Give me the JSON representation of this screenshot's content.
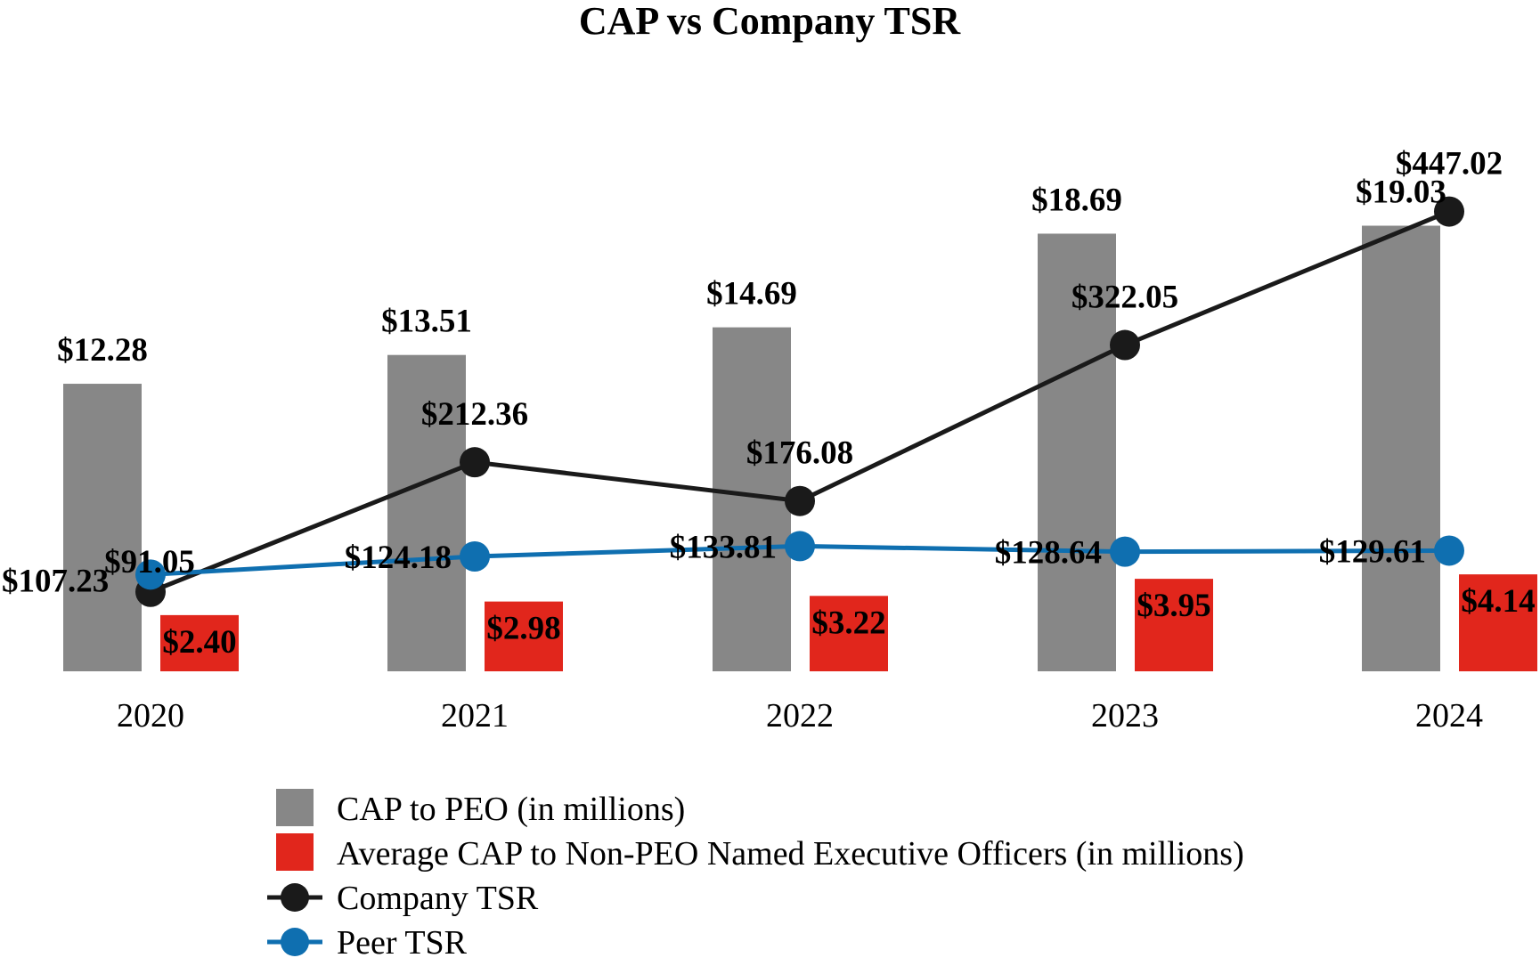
{
  "chart_data": {
    "type": "bar",
    "title": "CAP vs Company TSR",
    "categories": [
      "2020",
      "2021",
      "2022",
      "2023",
      "2024"
    ],
    "series": [
      {
        "name": "CAP to PEO (in millions)",
        "kind": "bar",
        "color": "#878787",
        "values": [
          12.28,
          13.51,
          14.69,
          18.69,
          19.03
        ],
        "labels": [
          "$12.28",
          "$13.51",
          "$14.69",
          "$18.69",
          "$19.03"
        ]
      },
      {
        "name": "Average CAP to Non-PEO Named Executive Officers (in millions)",
        "kind": "bar",
        "color": "#e1261c",
        "values": [
          2.4,
          2.98,
          3.22,
          3.95,
          4.14
        ],
        "labels": [
          "$2.40",
          "$2.98",
          "$3.22",
          "$3.95",
          "$4.14"
        ]
      },
      {
        "name": "Company TSR",
        "kind": "line",
        "color": "#1a1a1a",
        "values": [
          91.05,
          212.36,
          176.08,
          322.05,
          447.02
        ],
        "labels": [
          "$91.05",
          "$212.36",
          "$176.08",
          "$322.05",
          "$447.02"
        ]
      },
      {
        "name": "Peer TSR",
        "kind": "line",
        "color": "#0f6fb0",
        "values": [
          107.23,
          124.18,
          133.81,
          128.64,
          129.61
        ],
        "labels": [
          "$107.23",
          "$124.18",
          "$133.81",
          "$128.64",
          "$129.61"
        ]
      }
    ],
    "bar_axis_ylim": [
      0,
      25
    ],
    "line_axis_ylim": [
      0,
      700
    ],
    "grid": false,
    "legend": "bottom-center"
  }
}
